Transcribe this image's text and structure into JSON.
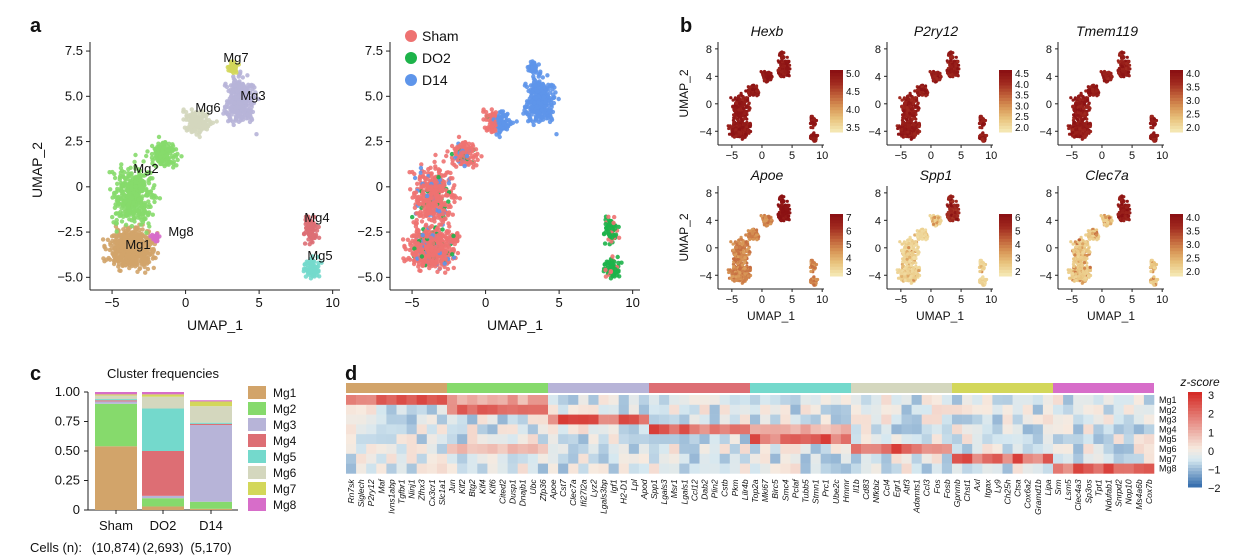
{
  "panel_labels": {
    "a": "a",
    "b": "b",
    "c": "c",
    "d": "d"
  },
  "colors": {
    "Mg1": "#D2A46A",
    "Mg2": "#86DA6C",
    "Mg3": "#B7B4D8",
    "Mg4": "#DD6E74",
    "Mg5": "#74D9CC",
    "Mg6": "#D4D7BE",
    "Mg7": "#D3D75A",
    "Mg8": "#D76DC9",
    "Sham": "#EE7271",
    "DO2": "#1DB34A",
    "D14": "#5E95EA",
    "heat_low": "#F2E6B0",
    "heat_high": "#8B1113"
  },
  "panel_a": {
    "xlabel": "UMAP_1",
    "ylabel": "UMAP_2",
    "xticks": [
      "−5",
      "0",
      "5",
      "10"
    ],
    "yticks": [
      "7.5",
      "5.0",
      "2.5",
      "0",
      "−2.5",
      "−5.0"
    ],
    "cluster_labels": [
      "Mg7",
      "Mg6",
      "Mg3",
      "Mg2",
      "Mg4",
      "Mg8",
      "Mg1",
      "Mg5"
    ],
    "legend": [
      "Sham",
      "DO2",
      "D14"
    ]
  },
  "panel_b": {
    "genes": [
      "Hexb",
      "P2ry12",
      "Tmem119",
      "Apoe",
      "Spp1",
      "Clec7a"
    ],
    "xlabel": "UMAP_1",
    "ylabel": "UMAP_2",
    "xticks": [
      "−5",
      "0",
      "5",
      "10"
    ],
    "yticks": [
      "8",
      "4",
      "0",
      "−4"
    ],
    "scales": [
      [
        "5.0",
        "4.5",
        "4.0",
        "3.5"
      ],
      [
        "4.5",
        "4.0",
        "3.5",
        "3.0",
        "2.5",
        "2.0"
      ],
      [
        "4.0",
        "3.5",
        "3.0",
        "2.5",
        "2.0"
      ],
      [
        "7",
        "6",
        "5",
        "4",
        "3"
      ],
      [
        "6",
        "5",
        "4",
        "3",
        "2"
      ],
      [
        "4.0",
        "3.5",
        "3.0",
        "2.5",
        "2.0"
      ]
    ]
  },
  "chart_data": {
    "type": "bar",
    "title": "Cluster frequencies",
    "categories": [
      "Sham",
      "DO2",
      "D14"
    ],
    "counts_label": "Cells (n):",
    "counts": [
      "(10,874)",
      "(2,693)",
      "(5,170)"
    ],
    "yticks": [
      "1.00",
      "0.75",
      "0.50",
      "0.25",
      "0"
    ],
    "ylim": [
      0,
      1
    ],
    "series": [
      {
        "name": "Mg1",
        "values": [
          0.54,
          0.03,
          0.01
        ]
      },
      {
        "name": "Mg2",
        "values": [
          0.36,
          0.07,
          0.06
        ]
      },
      {
        "name": "Mg3",
        "values": [
          0.02,
          0.02,
          0.65
        ]
      },
      {
        "name": "Mg4",
        "values": [
          0.01,
          0.38,
          0.01
        ]
      },
      {
        "name": "Mg5",
        "values": [
          0.01,
          0.36,
          0.01
        ]
      },
      {
        "name": "Mg6",
        "values": [
          0.03,
          0.1,
          0.14
        ]
      },
      {
        "name": "Mg7",
        "values": [
          0.01,
          0.02,
          0.04
        ]
      },
      {
        "name": "Mg8",
        "values": [
          0.02,
          0.02,
          0.01
        ]
      }
    ]
  },
  "panel_d": {
    "row_labels": [
      "Mg1",
      "Mg2",
      "Mg3",
      "Mg4",
      "Mg5",
      "Mg6",
      "Mg7",
      "Mg8"
    ],
    "zscore_title": "z-score",
    "zscore_ticks": [
      "3",
      "2",
      "1",
      "0",
      "−1",
      "−2"
    ],
    "genes": [
      "Rn7sk",
      "Siglech",
      "P2ry12",
      "Maf",
      "Ivns1abp",
      "Tgfbr1",
      "Ninj1",
      "Zfhx3",
      "Cx3cr1",
      "Slc1a1",
      "Jun",
      "Klf2",
      "Btg2",
      "Klf4",
      "Klf6",
      "Cited2",
      "Dusp1",
      "Dnajb1",
      "Ubc",
      "Zfp36",
      "Apoe",
      "Cst7",
      "Clec7a",
      "Ifi27l2a",
      "Lyz2",
      "Lgals3bp",
      "Igf1",
      "H2-D1",
      "Lpl",
      "Apod",
      "Spp1",
      "Lgals3",
      "Msr1",
      "Lgals1",
      "Ccl12",
      "Dab2",
      "Plin2",
      "Cstb",
      "Pkm",
      "Lilr4b",
      "Top2a",
      "Mki67",
      "Birc5",
      "Smc4",
      "Pclaf",
      "Tubb5",
      "Stmn1",
      "Prc1",
      "Ube2c",
      "Hmmr",
      "Il1b",
      "Cd83",
      "Nfkbiz",
      "Ccl4",
      "Egr1",
      "Atf3",
      "Adamts1",
      "Ccl3",
      "Fos",
      "Fosb",
      "Gpnmb",
      "Chst1",
      "Axl",
      "Itgax",
      "Ly9",
      "Ch25h",
      "Ctsa",
      "Cox6a2",
      "Gramd1b",
      "Lipa",
      "Srm",
      "Lsm5",
      "Clec4a3",
      "Sp3os",
      "Tpt1",
      "Ndufab1",
      "Snrpd2",
      "Nop10",
      "Ms4a6b",
      "Cox7b"
    ]
  }
}
